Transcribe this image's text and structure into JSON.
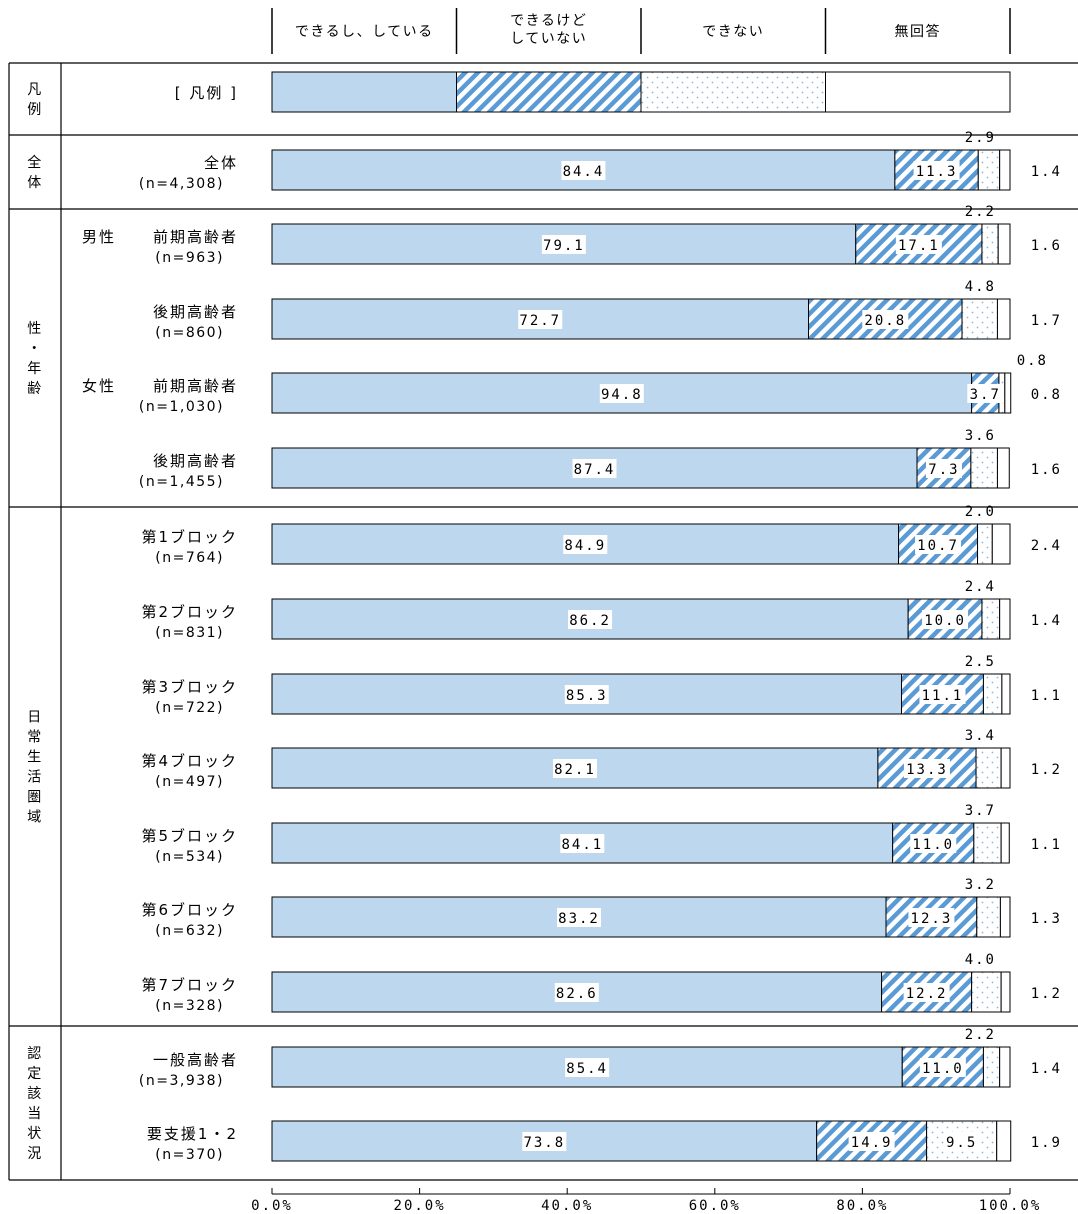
{
  "chart_data": {
    "type": "bar",
    "orientation": "horizontal",
    "stacked": true,
    "legend": {
      "labels": [
        "できるし、している",
        "できるけど\nしていない",
        "できない",
        "無回答"
      ],
      "example_label": "[ 凡例 ]"
    },
    "groups": [
      {
        "name": "凡\n例"
      },
      {
        "name": "全\n体"
      },
      {
        "name": "性\n・\n年\n齢"
      },
      {
        "name": "日\n常\n生\n活\n圏\n域"
      },
      {
        "name": "認\n定\n該\n当\n状\n況"
      }
    ],
    "rows": [
      {
        "group": 1,
        "sub": "",
        "label": "全体",
        "n": "(n=4,308)",
        "values": [
          84.4,
          11.3,
          2.9,
          1.4
        ],
        "labels": [
          "84.4",
          "11.3",
          "2.9",
          "1.4"
        ]
      },
      {
        "group": 2,
        "sub": "男性",
        "label": "前期高齢者",
        "n": "(n=963)",
        "values": [
          79.1,
          17.1,
          2.2,
          1.6
        ],
        "labels": [
          "79.1",
          "17.1",
          "2.2",
          "1.6"
        ]
      },
      {
        "group": 2,
        "sub": "",
        "label": "後期高齢者",
        "n": "(n=860)",
        "values": [
          72.7,
          20.8,
          4.8,
          1.7
        ],
        "labels": [
          "72.7",
          "20.8",
          "4.8",
          "1.7"
        ]
      },
      {
        "group": 2,
        "sub": "女性",
        "label": "前期高齢者",
        "n": "(n=1,030)",
        "values": [
          94.8,
          3.7,
          0.8,
          0.8
        ],
        "labels": [
          "94.8",
          "3.7",
          "0.8",
          "0.8"
        ]
      },
      {
        "group": 2,
        "sub": "",
        "label": "後期高齢者",
        "n": "(n=1,455)",
        "values": [
          87.4,
          7.3,
          3.6,
          1.6
        ],
        "labels": [
          "87.4",
          "7.3",
          "3.6",
          "1.6"
        ]
      },
      {
        "group": 3,
        "sub": "",
        "label": "第1ブロック",
        "n": "(n=764)",
        "values": [
          84.9,
          10.7,
          2.0,
          2.4
        ],
        "labels": [
          "84.9",
          "10.7",
          "2.0",
          "2.4"
        ]
      },
      {
        "group": 3,
        "sub": "",
        "label": "第2ブロック",
        "n": "(n=831)",
        "values": [
          86.2,
          10.0,
          2.4,
          1.4
        ],
        "labels": [
          "86.2",
          "10.0",
          "2.4",
          "1.4"
        ]
      },
      {
        "group": 3,
        "sub": "",
        "label": "第3ブロック",
        "n": "(n=722)",
        "values": [
          85.3,
          11.1,
          2.5,
          1.1
        ],
        "labels": [
          "85.3",
          "11.1",
          "2.5",
          "1.1"
        ]
      },
      {
        "group": 3,
        "sub": "",
        "label": "第4ブロック",
        "n": "(n=497)",
        "values": [
          82.1,
          13.3,
          3.4,
          1.2
        ],
        "labels": [
          "82.1",
          "13.3",
          "3.4",
          "1.2"
        ]
      },
      {
        "group": 3,
        "sub": "",
        "label": "第5ブロック",
        "n": "(n=534)",
        "values": [
          84.1,
          11.0,
          3.7,
          1.1
        ],
        "labels": [
          "84.1",
          "11.0",
          "3.7",
          "1.1"
        ]
      },
      {
        "group": 3,
        "sub": "",
        "label": "第6ブロック",
        "n": "(n=632)",
        "values": [
          83.2,
          12.3,
          3.2,
          1.3
        ],
        "labels": [
          "83.2",
          "12.3",
          "3.2",
          "1.3"
        ]
      },
      {
        "group": 3,
        "sub": "",
        "label": "第7ブロック",
        "n": "(n=328)",
        "values": [
          82.6,
          12.2,
          4.0,
          1.2
        ],
        "labels": [
          "82.6",
          "12.2",
          "4.0",
          "1.2"
        ]
      },
      {
        "group": 4,
        "sub": "",
        "label": "一般高齢者",
        "n": "(n=3,938)",
        "values": [
          85.4,
          11.0,
          2.2,
          1.4
        ],
        "labels": [
          "85.4",
          "11.0",
          "2.2",
          "1.4"
        ]
      },
      {
        "group": 4,
        "sub": "",
        "label": "要支援1・2",
        "n": "(n=370)",
        "values": [
          73.8,
          14.9,
          9.5,
          1.9
        ],
        "labels": [
          "73.8",
          "14.9",
          "9.5",
          "1.9"
        ]
      }
    ],
    "xaxis": {
      "ticks": [
        "0.0%",
        "20.0%",
        "40.0%",
        "60.0%",
        "80.0%",
        "100.0%"
      ]
    },
    "xlim": [
      0,
      100
    ],
    "colors": {
      "solid": "#bdd7ee",
      "stripe": "#5b9bd5",
      "dot": "#8fb4dc",
      "line": "#000000"
    }
  }
}
